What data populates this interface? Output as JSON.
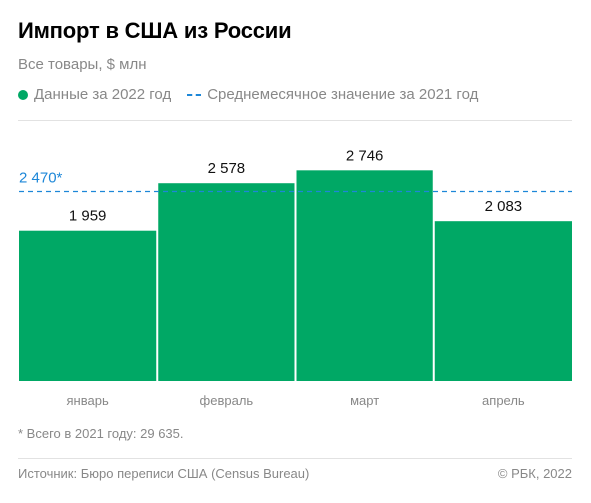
{
  "title": "Импорт в США из России",
  "subtitle": "Все товары, $ млн",
  "legend": {
    "bars": "Данные за 2022 год",
    "avg": "Среднемесячное значение за 2021 год"
  },
  "footnote": "* Всего в 2021 году: 29 635.",
  "source": "Источник: Бюро переписи США (Census Bureau)",
  "copyright": "© РБК, 2022",
  "colors": {
    "bar": "#00a865",
    "avg_line": "#1d87d8",
    "tick": "#888888"
  },
  "chart_data": {
    "type": "bar",
    "categories": [
      "январь",
      "февраль",
      "март",
      "апрель"
    ],
    "values": [
      1959,
      2578,
      2746,
      2083
    ],
    "value_labels": [
      "1 959",
      "2 578",
      "2 746",
      "2 083"
    ],
    "reference_line": {
      "value": 2470,
      "label": "2 470*",
      "style": "dashed"
    },
    "ylim": [
      0,
      3050
    ],
    "grid": false,
    "legend": "top-left"
  }
}
